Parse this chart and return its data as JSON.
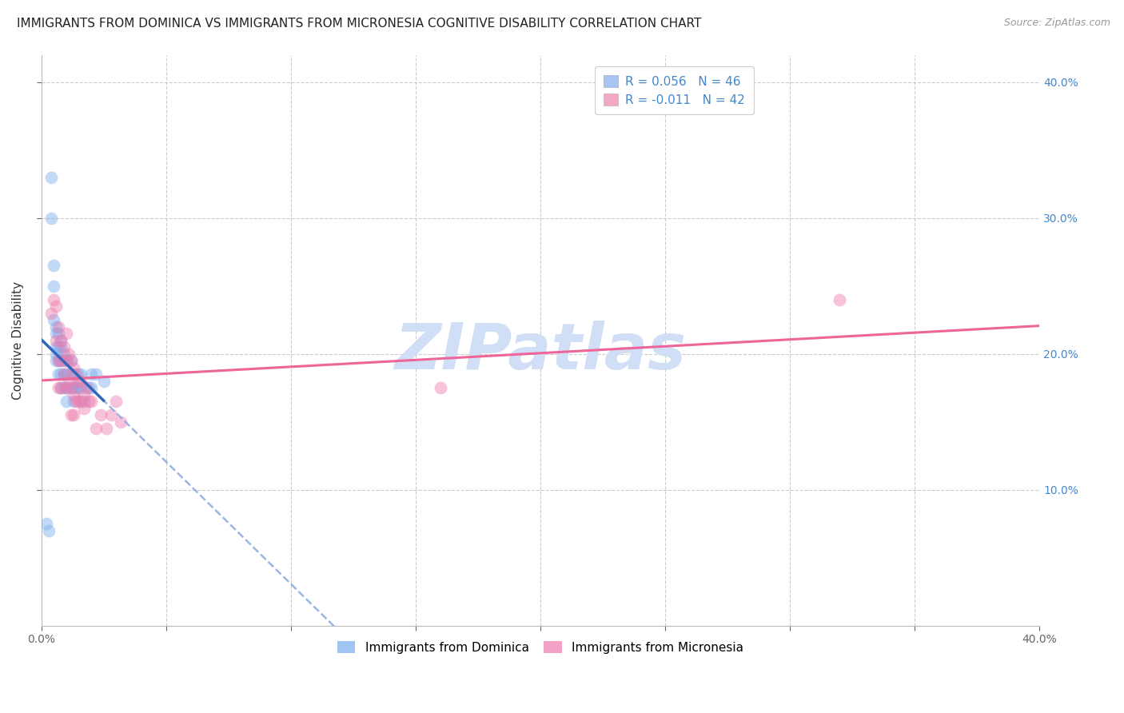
{
  "title": "IMMIGRANTS FROM DOMINICA VS IMMIGRANTS FROM MICRONESIA COGNITIVE DISABILITY CORRELATION CHART",
  "source": "Source: ZipAtlas.com",
  "ylabel": "Cognitive Disability",
  "right_yticks": [
    "40.0%",
    "30.0%",
    "20.0%",
    "10.0%"
  ],
  "right_ytick_vals": [
    0.4,
    0.3,
    0.2,
    0.1
  ],
  "xlim": [
    0.0,
    0.4
  ],
  "ylim": [
    0.0,
    0.42
  ],
  "legend1_r": "R = 0.056",
  "legend1_n": "N = 46",
  "legend2_r": "R = -0.011",
  "legend2_n": "N = 42",
  "legend1_color": "#a8c4f0",
  "legend2_color": "#f0a8c4",
  "dominica_color": "#7aadee",
  "micronesia_color": "#ee7aad",
  "trendline_solid_color": "#3366bb",
  "trendline_dash_color": "#88aadd",
  "trendline_pink_color": "#ee6699",
  "watermark": "ZIPatlas",
  "watermark_color": "#d0dff5",
  "dominica_x": [
    0.002,
    0.003,
    0.004,
    0.004,
    0.005,
    0.005,
    0.005,
    0.006,
    0.006,
    0.006,
    0.006,
    0.006,
    0.007,
    0.007,
    0.007,
    0.007,
    0.008,
    0.008,
    0.008,
    0.008,
    0.008,
    0.009,
    0.009,
    0.009,
    0.009,
    0.01,
    0.01,
    0.01,
    0.01,
    0.012,
    0.012,
    0.012,
    0.013,
    0.013,
    0.013,
    0.014,
    0.015,
    0.015,
    0.016,
    0.016,
    0.017,
    0.019,
    0.02,
    0.02,
    0.022,
    0.025
  ],
  "dominica_y": [
    0.075,
    0.07,
    0.33,
    0.3,
    0.265,
    0.25,
    0.225,
    0.22,
    0.215,
    0.205,
    0.2,
    0.195,
    0.215,
    0.205,
    0.195,
    0.185,
    0.21,
    0.205,
    0.195,
    0.185,
    0.175,
    0.2,
    0.195,
    0.185,
    0.175,
    0.195,
    0.185,
    0.175,
    0.165,
    0.195,
    0.185,
    0.175,
    0.185,
    0.175,
    0.165,
    0.175,
    0.185,
    0.175,
    0.185,
    0.175,
    0.165,
    0.175,
    0.185,
    0.175,
    0.185,
    0.18
  ],
  "micronesia_x": [
    0.004,
    0.005,
    0.006,
    0.006,
    0.007,
    0.007,
    0.007,
    0.008,
    0.008,
    0.008,
    0.009,
    0.009,
    0.01,
    0.01,
    0.01,
    0.011,
    0.011,
    0.012,
    0.012,
    0.012,
    0.013,
    0.013,
    0.013,
    0.014,
    0.014,
    0.015,
    0.015,
    0.016,
    0.016,
    0.017,
    0.017,
    0.018,
    0.019,
    0.02,
    0.022,
    0.024,
    0.026,
    0.028,
    0.03,
    0.032,
    0.16,
    0.32
  ],
  "micronesia_y": [
    0.23,
    0.24,
    0.235,
    0.21,
    0.22,
    0.195,
    0.175,
    0.21,
    0.195,
    0.175,
    0.205,
    0.185,
    0.215,
    0.195,
    0.175,
    0.2,
    0.18,
    0.195,
    0.175,
    0.155,
    0.19,
    0.17,
    0.155,
    0.185,
    0.165,
    0.18,
    0.165,
    0.18,
    0.165,
    0.17,
    0.16,
    0.175,
    0.165,
    0.165,
    0.145,
    0.155,
    0.145,
    0.155,
    0.165,
    0.15,
    0.175,
    0.24
  ],
  "background_color": "#ffffff",
  "grid_color": "#cccccc",
  "marker_size": 130,
  "marker_alpha": 0.45,
  "font_size_title": 11,
  "font_size_ticks": 10,
  "font_size_legend": 11,
  "font_size_ylabel": 11
}
